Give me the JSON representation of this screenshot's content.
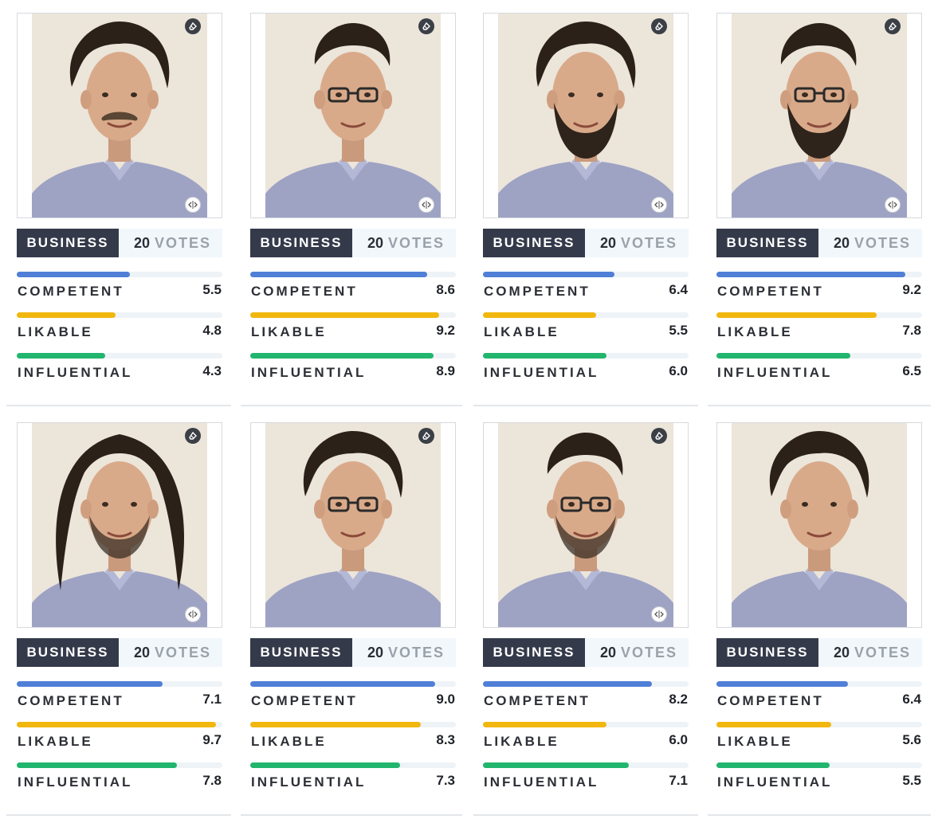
{
  "metric_colors": {
    "competent": "#4f7fd6",
    "likable": "#f1b70f",
    "influential": "#21b56d"
  },
  "cards": [
    {
      "category": "BUSINESS",
      "votes": "20",
      "votes_word": "VOTES",
      "hair": "medium",
      "glasses": false,
      "beard": "mustache",
      "has_erase": true,
      "has_compare": true,
      "metrics": [
        {
          "label": "COMPETENT",
          "value": "5.5"
        },
        {
          "label": "LIKABLE",
          "value": "4.8"
        },
        {
          "label": "INFLUENTIAL",
          "value": "4.3"
        }
      ]
    },
    {
      "category": "BUSINESS",
      "votes": "20",
      "votes_word": "VOTES",
      "hair": "short",
      "glasses": true,
      "beard": "none",
      "has_erase": true,
      "has_compare": true,
      "metrics": [
        {
          "label": "COMPETENT",
          "value": "8.6"
        },
        {
          "label": "LIKABLE",
          "value": "9.2"
        },
        {
          "label": "INFLUENTIAL",
          "value": "8.9"
        }
      ]
    },
    {
      "category": "BUSINESS",
      "votes": "20",
      "votes_word": "VOTES",
      "hair": "medium",
      "glasses": false,
      "beard": "full",
      "has_erase": true,
      "has_compare": true,
      "metrics": [
        {
          "label": "COMPETENT",
          "value": "6.4"
        },
        {
          "label": "LIKABLE",
          "value": "5.5"
        },
        {
          "label": "INFLUENTIAL",
          "value": "6.0"
        }
      ]
    },
    {
      "category": "BUSINESS",
      "votes": "20",
      "votes_word": "VOTES",
      "hair": "short",
      "glasses": true,
      "beard": "full",
      "has_erase": true,
      "has_compare": true,
      "metrics": [
        {
          "label": "COMPETENT",
          "value": "9.2"
        },
        {
          "label": "LIKABLE",
          "value": "7.8"
        },
        {
          "label": "INFLUENTIAL",
          "value": "6.5"
        }
      ]
    },
    {
      "category": "BUSINESS",
      "votes": "20",
      "votes_word": "VOTES",
      "hair": "long",
      "glasses": false,
      "beard": "stubble",
      "has_erase": true,
      "has_compare": true,
      "metrics": [
        {
          "label": "COMPETENT",
          "value": "7.1"
        },
        {
          "label": "LIKABLE",
          "value": "9.7"
        },
        {
          "label": "INFLUENTIAL",
          "value": "7.8"
        }
      ]
    },
    {
      "category": "BUSINESS",
      "votes": "20",
      "votes_word": "VOTES",
      "hair": "medium",
      "glasses": true,
      "beard": "none",
      "has_erase": true,
      "has_compare": false,
      "metrics": [
        {
          "label": "COMPETENT",
          "value": "9.0"
        },
        {
          "label": "LIKABLE",
          "value": "8.3"
        },
        {
          "label": "INFLUENTIAL",
          "value": "7.3"
        }
      ]
    },
    {
      "category": "BUSINESS",
      "votes": "20",
      "votes_word": "VOTES",
      "hair": "short",
      "glasses": true,
      "beard": "stubble",
      "has_erase": true,
      "has_compare": true,
      "metrics": [
        {
          "label": "COMPETENT",
          "value": "8.2"
        },
        {
          "label": "LIKABLE",
          "value": "6.0"
        },
        {
          "label": "INFLUENTIAL",
          "value": "7.1"
        }
      ]
    },
    {
      "category": "BUSINESS",
      "votes": "20",
      "votes_word": "VOTES",
      "hair": "medium",
      "glasses": false,
      "beard": "none",
      "has_erase": false,
      "has_compare": false,
      "metrics": [
        {
          "label": "COMPETENT",
          "value": "6.4"
        },
        {
          "label": "LIKABLE",
          "value": "5.6"
        },
        {
          "label": "INFLUENTIAL",
          "value": "5.5"
        }
      ]
    }
  ]
}
